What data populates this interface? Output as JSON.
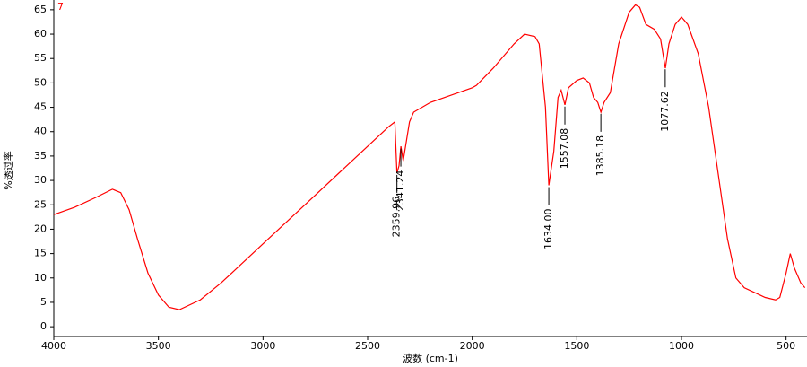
{
  "chart_data": {
    "type": "line",
    "xlabel": "波数 (cm-1)",
    "ylabel": "%透过率",
    "xlim": [
      4000,
      400
    ],
    "ylim": [
      -2,
      67
    ],
    "xticks": [
      4000,
      3500,
      3000,
      2500,
      2000,
      1500,
      1000,
      500
    ],
    "yticks": [
      0,
      5,
      10,
      15,
      20,
      25,
      30,
      35,
      40,
      45,
      50,
      55,
      60,
      65
    ],
    "x": [
      4000,
      3900,
      3800,
      3720,
      3680,
      3640,
      3600,
      3550,
      3500,
      3450,
      3400,
      3300,
      3200,
      3000,
      2800,
      2600,
      2400,
      2370,
      2360,
      2350,
      2341,
      2330,
      2300,
      2280,
      2200,
      2000,
      1980,
      1900,
      1800,
      1750,
      1700,
      1680,
      1650,
      1634,
      1610,
      1590,
      1575,
      1557,
      1540,
      1500,
      1470,
      1440,
      1420,
      1400,
      1385,
      1370,
      1340,
      1300,
      1250,
      1220,
      1200,
      1170,
      1130,
      1100,
      1077,
      1060,
      1030,
      1000,
      970,
      920,
      870,
      820,
      780,
      740,
      700,
      650,
      600,
      550,
      530,
      500,
      480,
      460,
      430,
      410
    ],
    "series": [
      {
        "name": "7",
        "color": "#ff0000",
        "values": [
          23,
          24.5,
          26.5,
          28.2,
          27.5,
          24,
          18,
          11,
          6.5,
          4,
          3.5,
          5.5,
          9,
          17,
          25,
          33,
          41,
          42,
          31.5,
          33,
          37,
          34,
          42,
          44,
          46,
          49,
          49.5,
          53,
          58,
          60,
          59.5,
          58,
          45,
          29,
          36,
          47,
          48.5,
          45.5,
          49,
          50.5,
          51,
          50,
          47,
          46,
          44,
          46,
          48,
          58,
          64.5,
          66,
          65.5,
          62,
          61,
          59,
          53,
          58,
          62,
          63.5,
          62,
          56,
          45,
          30,
          18,
          10,
          8,
          7,
          6,
          5.5,
          6,
          11,
          15,
          12,
          9,
          8
        ]
      }
    ],
    "annotations": [
      {
        "value": 2359.96,
        "label": "2359.96"
      },
      {
        "value": 2341.24,
        "label": "2341.24"
      },
      {
        "value": 1634.0,
        "label": "1634.00"
      },
      {
        "value": 1557.08,
        "label": "1557.08"
      },
      {
        "value": 1385.18,
        "label": "1385.18"
      },
      {
        "value": 1077.62,
        "label": "1077.62"
      }
    ]
  }
}
